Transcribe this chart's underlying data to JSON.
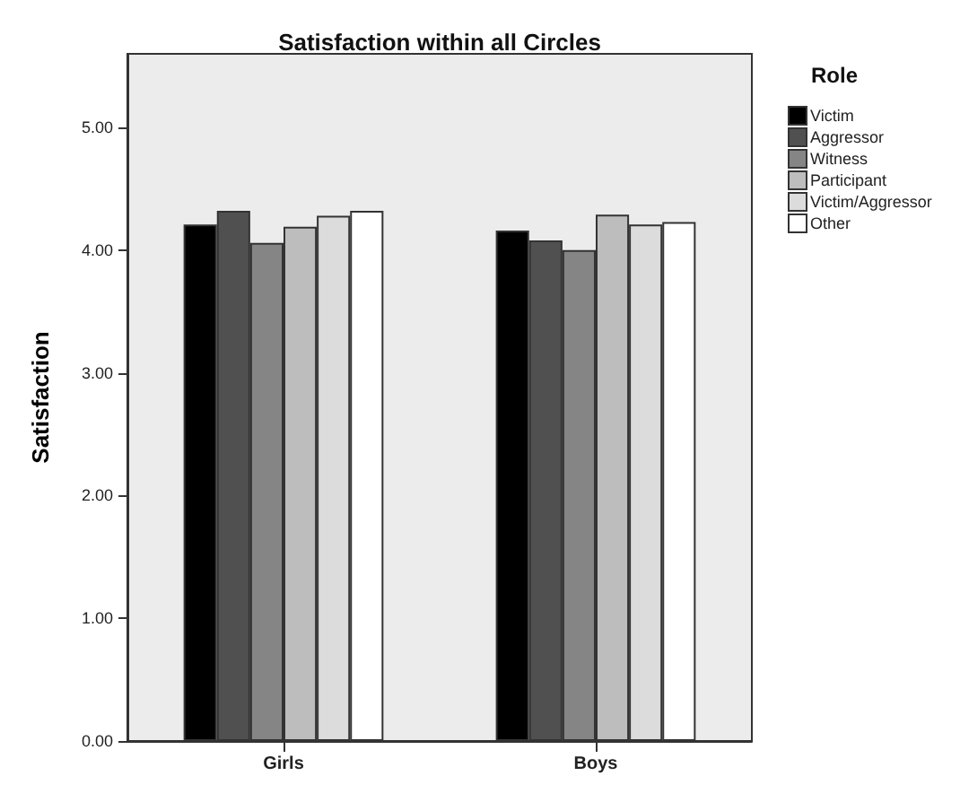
{
  "chart_data": {
    "type": "bar",
    "title": "Satisfaction within all Circles",
    "ylabel": "Satisfaction",
    "legend_title": "Role",
    "categories": [
      "Girls",
      "Boys"
    ],
    "series": [
      {
        "name": "Victim",
        "color": "#000000",
        "values": [
          4.21,
          4.16
        ]
      },
      {
        "name": "Aggressor",
        "color": "#505050",
        "values": [
          4.32,
          4.08
        ]
      },
      {
        "name": "Witness",
        "color": "#858585",
        "values": [
          4.06,
          4.0
        ]
      },
      {
        "name": "Participant",
        "color": "#bdbdbd",
        "values": [
          4.19,
          4.29
        ]
      },
      {
        "name": "Victim/Aggressor",
        "color": "#dcdcdc",
        "values": [
          4.28,
          4.21
        ]
      },
      {
        "name": "Other",
        "color": "#ffffff",
        "values": [
          4.32,
          4.23
        ]
      }
    ],
    "ylim": [
      0,
      5.6
    ],
    "yticks": [
      {
        "value": 0,
        "label": "0.00"
      },
      {
        "value": 1,
        "label": "1.00"
      },
      {
        "value": 2,
        "label": "2.00"
      },
      {
        "value": 3,
        "label": "3.00"
      },
      {
        "value": 4,
        "label": "4.00"
      },
      {
        "value": 5,
        "label": "5.00"
      }
    ],
    "grid": false,
    "legend": "right"
  }
}
